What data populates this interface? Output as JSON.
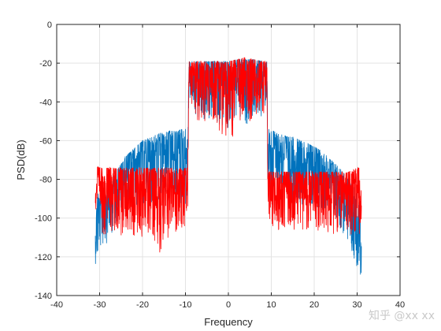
{
  "chart_data": {
    "type": "line",
    "title": "",
    "xlabel": "Frequency",
    "ylabel": "PSD(dB)",
    "xlim": [
      -40,
      40
    ],
    "ylim": [
      -140,
      0
    ],
    "xticks": [
      -40,
      -30,
      -20,
      -10,
      0,
      10,
      20,
      30,
      40
    ],
    "yticks": [
      0,
      -20,
      -40,
      -60,
      -80,
      -100,
      -120,
      -140
    ],
    "grid": true,
    "legend": "none",
    "series": [
      {
        "color": "#0072BD",
        "x": [
          -31,
          -30.5,
          -30,
          -29,
          -28,
          -27,
          -26,
          -25,
          -24,
          -23,
          -22,
          -21,
          -20,
          -19,
          -18,
          -17,
          -16,
          -15,
          -14,
          -13,
          -12,
          -11,
          -10,
          -9.5,
          -9.2,
          -9,
          -8,
          -6,
          -4,
          -2,
          0,
          2,
          4,
          6,
          8,
          9,
          9.2,
          9.5,
          10,
          11,
          12,
          13,
          14,
          15,
          16,
          17,
          18,
          19,
          20,
          21,
          22,
          23,
          24,
          25,
          26,
          27,
          28,
          29,
          30,
          30.5,
          31
        ],
        "upper": [
          -108,
          -85,
          -90,
          -88,
          -84,
          -79,
          -75,
          -72,
          -68,
          -66,
          -64,
          -62,
          -60,
          -59,
          -58,
          -57,
          -56,
          -56,
          -55,
          -55,
          -55,
          -54,
          -54,
          -60,
          -19,
          -19,
          -19,
          -19,
          -19,
          -19,
          -19,
          -18,
          -18,
          -18,
          -19,
          -19,
          -54,
          -54,
          -55,
          -55,
          -56,
          -57,
          -58,
          -58,
          -59,
          -60,
          -61,
          -62,
          -63,
          -64,
          -66,
          -68,
          -70,
          -72,
          -74,
          -77,
          -80,
          -83,
          -87,
          -85,
          -110
        ],
        "lower": [
          -124,
          -122,
          -118,
          -115,
          -112,
          -108,
          -102,
          -100,
          -98,
          -96,
          -95,
          -94,
          -94,
          -94,
          -93,
          -93,
          -93,
          -93,
          -93,
          -93,
          -93,
          -94,
          -95,
          -95,
          -40,
          -40,
          -48,
          -52,
          -50,
          -52,
          -62,
          -52,
          -52,
          -50,
          -48,
          -40,
          -95,
          -95,
          -94,
          -93,
          -93,
          -93,
          -93,
          -93,
          -93,
          -93,
          -93,
          -94,
          -94,
          -95,
          -96,
          -98,
          -100,
          -102,
          -106,
          -110,
          -115,
          -122,
          -126,
          -130,
          -132
        ]
      },
      {
        "color": "#FF0000",
        "x": [
          -31,
          -30.5,
          -30,
          -28,
          -26,
          -24,
          -22,
          -20,
          -18,
          -16,
          -14,
          -12,
          -10,
          -9.5,
          -9.2,
          -9,
          -8,
          -6,
          -4,
          -2,
          0,
          2,
          4,
          6,
          8,
          9,
          9.2,
          9.5,
          10,
          12,
          14,
          16,
          18,
          20,
          22,
          24,
          26,
          28,
          30,
          30.5,
          31
        ],
        "upper": [
          -88,
          -73,
          -74,
          -74,
          -74,
          -74,
          -74,
          -74,
          -74,
          -74,
          -74,
          -74,
          -74,
          -74,
          -19,
          -19,
          -19,
          -19,
          -19,
          -19,
          -19,
          -18,
          -17,
          -18,
          -19,
          -19,
          -76,
          -76,
          -76,
          -76,
          -76,
          -76,
          -76,
          -76,
          -76,
          -76,
          -76,
          -76,
          -74,
          -74,
          -88
        ],
        "lower": [
          -98,
          -100,
          -110,
          -108,
          -110,
          -108,
          -112,
          -110,
          -108,
          -118,
          -110,
          -108,
          -106,
          -106,
          -40,
          -40,
          -48,
          -52,
          -50,
          -55,
          -62,
          -55,
          -52,
          -50,
          -48,
          -40,
          -106,
          -106,
          -106,
          -106,
          -106,
          -106,
          -106,
          -106,
          -108,
          -110,
          -106,
          -108,
          -110,
          -112,
          -100
        ]
      }
    ]
  },
  "watermark": "知乎 @xx xx"
}
